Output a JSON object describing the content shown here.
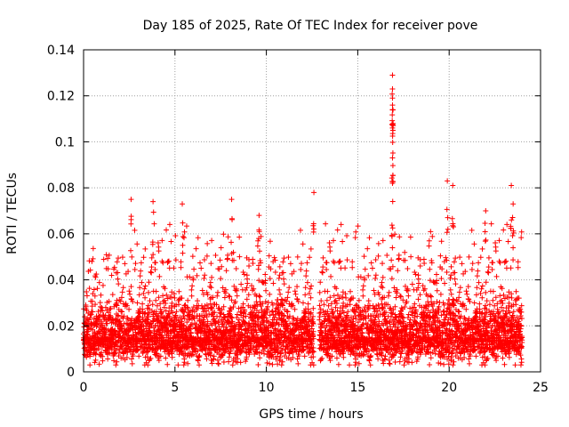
{
  "chart_data": {
    "type": "scatter",
    "title": "Day 185 of 2025, Rate Of TEC Index for receiver pove",
    "xlabel": "GPS time / hours",
    "ylabel": "ROTI / TECUs",
    "xlim": [
      0,
      25
    ],
    "ylim": [
      0,
      0.14
    ],
    "grid": true,
    "marker": "+",
    "marker_color": "#ff0000",
    "xticks": [
      0,
      5,
      10,
      15,
      20,
      25
    ],
    "xtick_labels": [
      "0",
      "5",
      "10",
      "15",
      "20",
      "25"
    ],
    "yticks": [
      0,
      0.02,
      0.04,
      0.06,
      0.08,
      0.1,
      0.12,
      0.14
    ],
    "ytick_labels": [
      "0",
      "0.02",
      "0.04",
      "0.06",
      "0.08",
      "0.1",
      "0.12",
      "0.14"
    ],
    "series": [
      {
        "name": "ROTI",
        "notable_points": [
          {
            "x": 2.6,
            "y": 0.075
          },
          {
            "x": 3.8,
            "y": 0.074
          },
          {
            "x": 5.4,
            "y": 0.073
          },
          {
            "x": 8.1,
            "y": 0.075
          },
          {
            "x": 9.6,
            "y": 0.068
          },
          {
            "x": 12.6,
            "y": 0.078
          },
          {
            "x": 16.9,
            "y": 0.129
          },
          {
            "x": 16.9,
            "y": 0.123
          },
          {
            "x": 16.9,
            "y": 0.119
          },
          {
            "x": 16.9,
            "y": 0.114
          },
          {
            "x": 16.9,
            "y": 0.106
          },
          {
            "x": 16.9,
            "y": 0.093
          },
          {
            "x": 16.9,
            "y": 0.082
          },
          {
            "x": 19.9,
            "y": 0.083
          },
          {
            "x": 20.2,
            "y": 0.081
          },
          {
            "x": 22.0,
            "y": 0.07
          },
          {
            "x": 23.4,
            "y": 0.081
          },
          {
            "x": 23.5,
            "y": 0.073
          }
        ],
        "bulk_density": {
          "x_start": 0,
          "x_end": 24.0,
          "gap": [
            12.6,
            12.9
          ],
          "typical_min": 0.005,
          "typical_max": 0.045,
          "typical_center": 0.015
        }
      }
    ]
  }
}
